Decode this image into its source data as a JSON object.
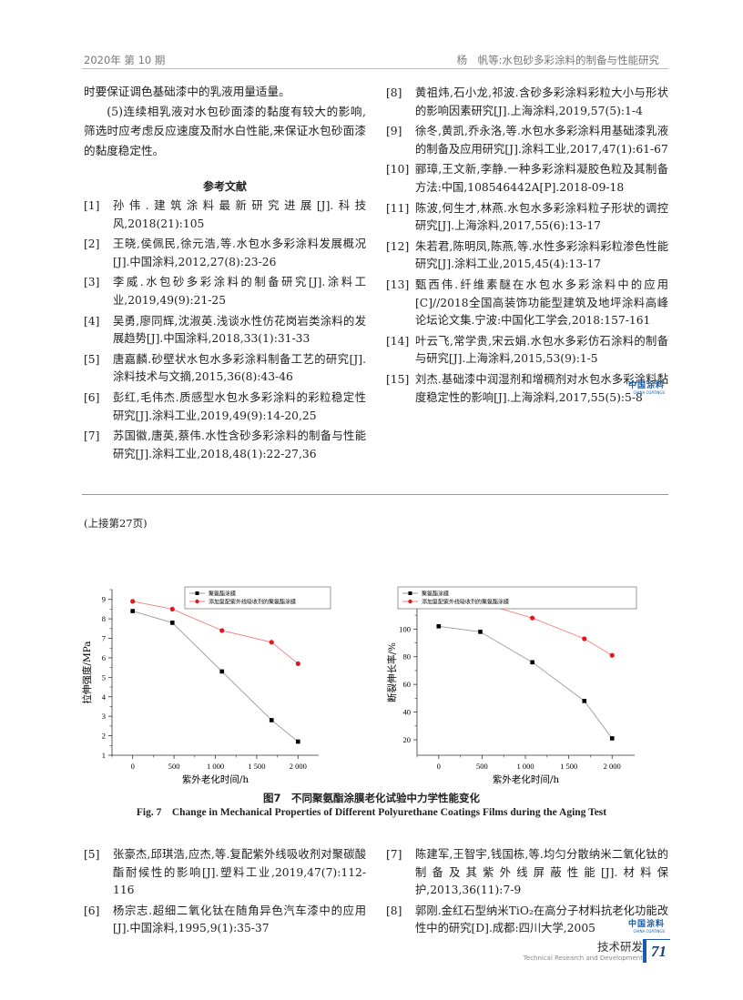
{
  "header": {
    "left": "2020年 第 10 期",
    "right": "杨　帆等:水包砂多彩涂料的制备与性能研究"
  },
  "left_col": {
    "paragraphs": [
      "时要保证调色基础漆中的乳液用量适量。",
      "(5)连续相乳液对水包砂面漆的黏度有较大的影响,筛选时应考虑反应速度及耐水白性能,来保证水包砂面漆的黏度稳定性。"
    ],
    "ref_title": "参考文献",
    "refs": [
      {
        "n": "[1]",
        "t": "孙伟.建筑涂料最新研究进展[J].科技风,2018(21):105"
      },
      {
        "n": "[2]",
        "t": "王晓,侯佩民,徐元浩,等.水包水多彩涂料发展概况[J].中国涂料,2012,27(8):23-26"
      },
      {
        "n": "[3]",
        "t": "李威.水包砂多彩涂料的制备研究[J].涂料工业,2019,49(9):21-25"
      },
      {
        "n": "[4]",
        "t": "吴勇,廖同辉,沈淑英.浅谈水性仿花岗岩类涂料的发展趋势[J].中国涂料,2018,33(1):31-33"
      },
      {
        "n": "[5]",
        "t": "唐嘉麟.砂壁状水包水多彩涂料制备工艺的研究[J].涂料技术与文摘,2015,36(8):43-46"
      },
      {
        "n": "[6]",
        "t": "彭红,毛伟杰.质感型水包水多彩涂料的彩粒稳定性研究[J].涂料工业,2019,49(9):14-20,25"
      },
      {
        "n": "[7]",
        "t": "苏国徽,唐英,蔡伟.水性含砂多彩涂料的制备与性能研究[J].涂料工业,2018,48(1):22-27,36"
      }
    ]
  },
  "right_col": {
    "refs": [
      {
        "n": "[8]",
        "t": "黄祖炜,石小龙,祁波.含砂多彩涂料彩粒大小与形状的影响因素研究[J].上海涂料,2019,57(5):1-4"
      },
      {
        "n": "[9]",
        "t": "徐冬,黄凯,乔永洛,等.水包水多彩涂料用基础漆乳液的制备及应用研究[J].涂料工业,2017,47(1):61-67"
      },
      {
        "n": "[10]",
        "t": "郦璋,王文新,李静.一种多彩涂料凝胶色粒及其制备方法:中国,108546442A[P].2018-09-18"
      },
      {
        "n": "[11]",
        "t": "陈波,何生才,林燕.水包水多彩涂料粒子形状的调控研究[J].上海涂料,2017,55(6):13-17"
      },
      {
        "n": "[12]",
        "t": "朱若君,陈明凤,陈燕,等.水性多彩涂料彩粒渗色性能研究[J].涂料工业,2015,45(4):13-17"
      },
      {
        "n": "[13]",
        "t": "甄西伟.纤维素醚在水包水多彩涂料中的应用[C]//2018全国高装饰功能型建筑及地坪涂料高峰论坛论文集.宁波:中国化工学会,2018:157-161"
      },
      {
        "n": "[14]",
        "t": "叶云飞,常学贵,宋云娟.水包水多彩仿石涂料的制备与研究[J].上海涂料,2015,53(9):1-5"
      },
      {
        "n": "[15]",
        "t": "刘杰.基础漆中润湿剂和增稠剂对水包水多彩涂料黏度稳定性的影响[J].上海涂料,2017,55(5):5-8"
      }
    ]
  },
  "logo": {
    "cn": "中国涂料",
    "en": "CHINA COATINGS",
    "color": "#1a5aa8"
  },
  "continued": "(上接第27页)",
  "figure": {
    "caption_cn": "图7　不同聚氨酯涂膜老化试验中力学性能变化",
    "caption_en": "Fig. 7　Change in Mechanical Properties of Different Polyurethane Coatings Films during the Aging Test"
  },
  "chart_data": [
    {
      "type": "line",
      "xlabel": "紫外老化时间/h",
      "ylabel": "拉伸强度/MPa",
      "x": [
        0,
        480,
        1080,
        1680,
        2000
      ],
      "xlim": [
        -250,
        2250
      ],
      "ylim": [
        1,
        9.5
      ],
      "xticks": [
        0,
        500,
        1000,
        1500,
        2000
      ],
      "xtick_labels": [
        "0",
        "500",
        "1 000",
        "1 500",
        "2 000"
      ],
      "yticks": [
        1,
        2,
        3,
        4,
        5,
        6,
        7,
        8,
        9
      ],
      "ytick_labels": [
        "1",
        "2",
        "3",
        "4",
        "5",
        "6",
        "7",
        "8",
        "9"
      ],
      "grid": false,
      "legend": "top-right",
      "series": [
        {
          "name": "聚氨酯涂膜",
          "values": [
            8.4,
            7.8,
            5.3,
            2.8,
            1.7
          ],
          "color": "#000000",
          "line": "#999999",
          "marker": "square"
        },
        {
          "name": "添加复配紫外线吸收剂的聚氨酯涂膜",
          "values": [
            8.9,
            8.5,
            7.4,
            6.8,
            5.7
          ],
          "color": "#e8141c",
          "line": "#f08080",
          "marker": "circle"
        }
      ]
    },
    {
      "type": "line",
      "xlabel": "紫外老化时间/h",
      "ylabel": "断裂伸长率/%",
      "x": [
        0,
        480,
        1080,
        1680,
        2000
      ],
      "xlim": [
        -250,
        2260
      ],
      "ylim": [
        8.8,
        128.5
      ],
      "xticks": [
        0,
        500,
        1000,
        1500,
        2000
      ],
      "xtick_labels": [
        "0",
        "500",
        "1 000",
        "1 500",
        "2 000"
      ],
      "yticks": [
        20,
        40,
        60,
        80,
        100,
        120
      ],
      "ytick_labels": [
        "20",
        "40",
        "60",
        "80",
        "100",
        "120"
      ],
      "grid": false,
      "legend": "top-right",
      "series": [
        {
          "name": "聚氨酯涂膜",
          "values": [
            102,
            98,
            76,
            48,
            21
          ],
          "color": "#000000",
          "line": "#999999",
          "marker": "square"
        },
        {
          "name": "添加复配紫外线吸收剂的聚氨酯涂膜",
          "values": [
            121,
            119,
            108,
            93,
            81
          ],
          "color": "#e8141c",
          "line": "#f08080",
          "marker": "circle"
        }
      ]
    }
  ],
  "bottom_left": {
    "refs": [
      {
        "n": "[5]",
        "t": "张豪杰,邱琪浩,应杰,等.复配紫外线吸收剂对聚碳酸酯耐候性的影响[J].塑料工业,2019,47(7):112-116"
      },
      {
        "n": "[6]",
        "t": "杨宗志.超细二氧化钛在随角异色汽车漆中的应用[J].中国涂料,1995,9(1):35-37"
      }
    ]
  },
  "bottom_right": {
    "refs": [
      {
        "n": "[7]",
        "t": "陈建军,王智宇,钱国栋,等.均匀分散纳米二氧化钛的制备及其紫外线屏蔽性能[J].材料保护,2013,36(11):7-9"
      },
      {
        "n": "[8]",
        "t": "郭刚.金红石型纳米TiO₂在高分子材料抗老化功能改性中的研究[D].成都:四川大学,2005"
      }
    ]
  },
  "footer": {
    "section_cn": "技术研发",
    "section_en": "Technical Research and Development",
    "page": "71"
  }
}
